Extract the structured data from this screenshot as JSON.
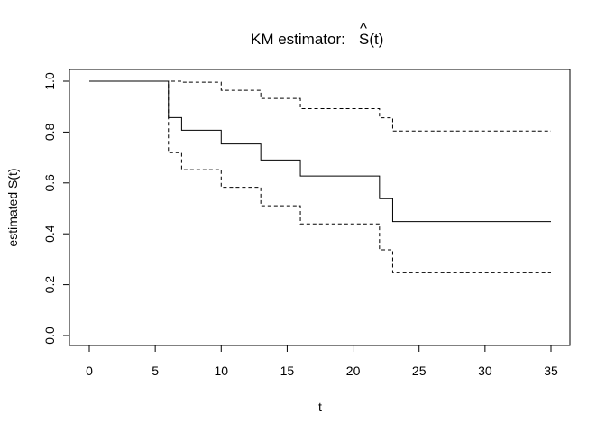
{
  "chart_data": {
    "type": "line",
    "title": "KM estimator: ",
    "title_math": "S(t)",
    "title_hat": "^",
    "xlabel": "t",
    "ylabel": "estimated S(t)",
    "xlim": [
      0,
      35
    ],
    "ylim": [
      0,
      1
    ],
    "xticks": [
      "0",
      "5",
      "10",
      "15",
      "20",
      "25",
      "30",
      "35"
    ],
    "yticks": [
      "0.0",
      "0.2",
      "0.4",
      "0.6",
      "0.8",
      "1.0"
    ],
    "grid": false,
    "legend": "none",
    "series": [
      {
        "style": "solid",
        "color": "#000000",
        "x": [
          0,
          6,
          7,
          10,
          13,
          16,
          22,
          23,
          35
        ],
        "y": [
          1.0,
          0.857,
          0.807,
          0.753,
          0.69,
          0.627,
          0.538,
          0.448,
          0.448
        ]
      },
      {
        "style": "dashed",
        "color": "#000000",
        "x": [
          0,
          6,
          7,
          10,
          13,
          16,
          22,
          23,
          35
        ],
        "y": [
          1.0,
          1.0,
          0.996,
          0.964,
          0.932,
          0.892,
          0.856,
          0.804,
          0.804
        ]
      },
      {
        "style": "dashed",
        "color": "#000000",
        "x": [
          0,
          6,
          7,
          10,
          13,
          16,
          22,
          23,
          35
        ],
        "y": [
          1.0,
          0.719,
          0.652,
          0.583,
          0.51,
          0.439,
          0.337,
          0.247,
          0.247
        ]
      }
    ]
  }
}
